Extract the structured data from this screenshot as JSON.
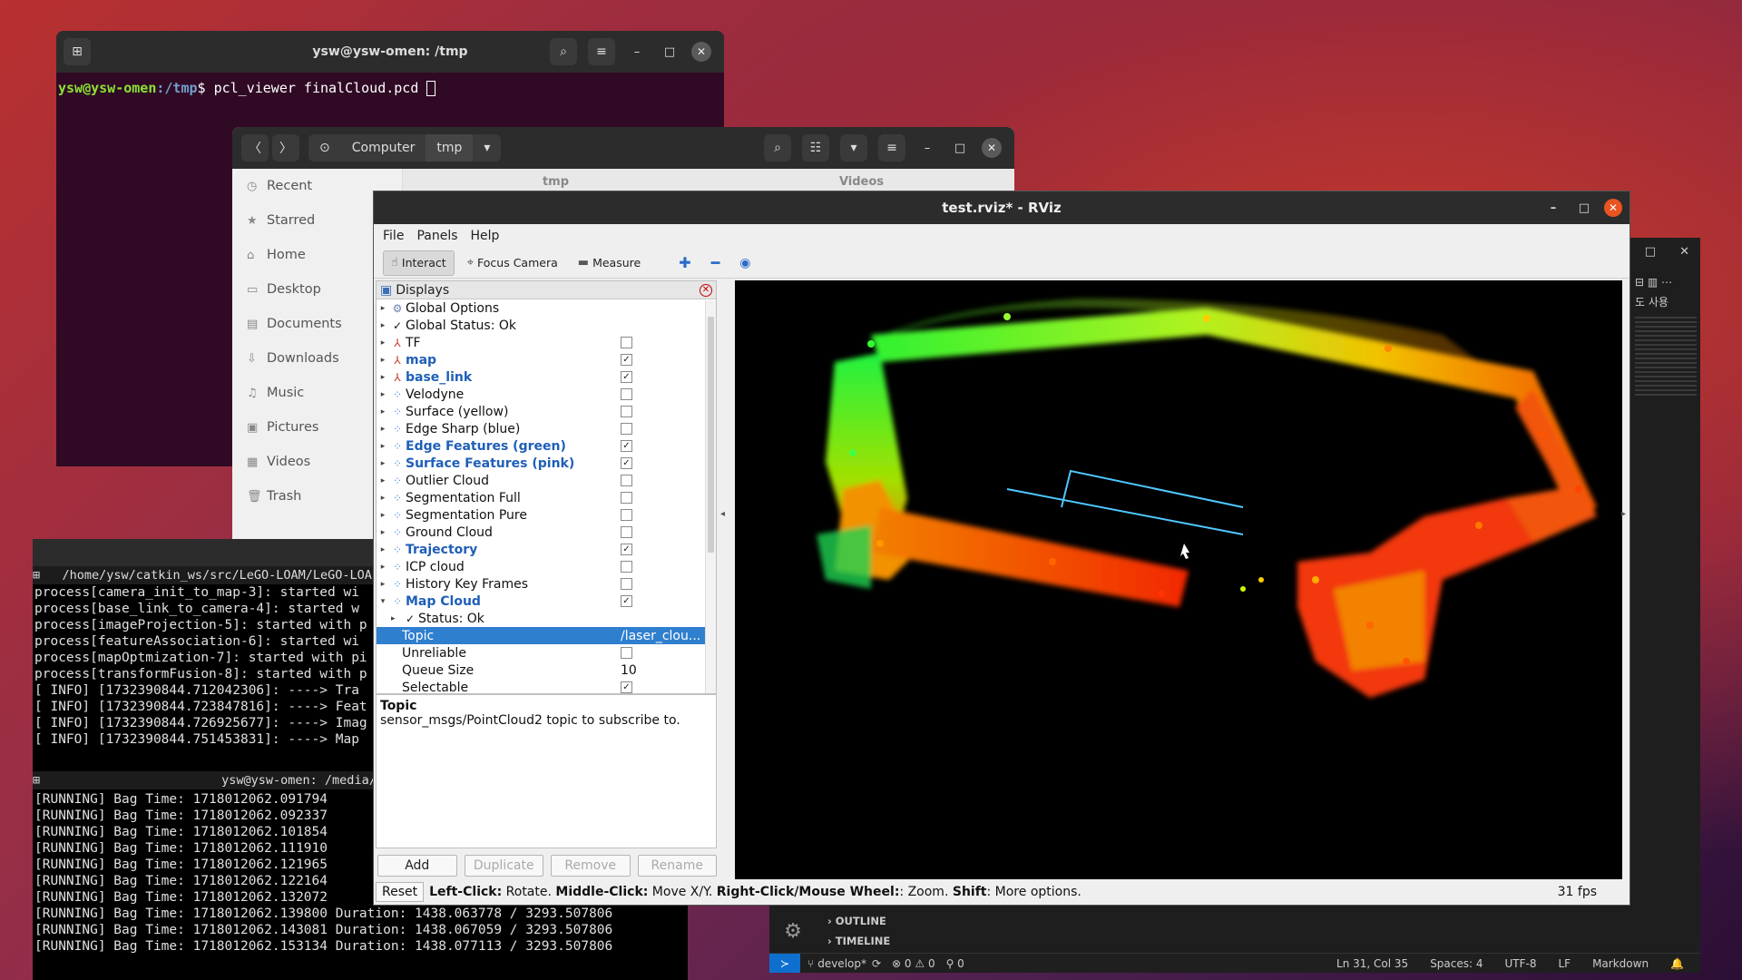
{
  "terminal1": {
    "title": "ysw@ysw-omen: /tmp",
    "user_host": "ysw@ysw-omen",
    "path": ":/tmp",
    "command": "$ pcl_viewer finalCloud.pcd"
  },
  "files": {
    "path_segments": [
      "Computer",
      "tmp"
    ],
    "tabs": [
      "tmp",
      "Videos"
    ],
    "sidebar": [
      "Recent",
      "Starred",
      "Home",
      "Desktop",
      "Documents",
      "Downloads",
      "Music",
      "Pictures",
      "Videos",
      "Trash"
    ]
  },
  "terminal2": {
    "title": "ysw@ysw-omen: /media",
    "subtab": "/home/ysw/catkin_ws/src/LeGO-LOAM/LeGO-LOA",
    "lines": [
      "process[camera_init_to_map-3]: started wi",
      "process[base_link_to_camera-4]: started w",
      "process[imageProjection-5]: started with p",
      "process[featureAssociation-6]: started wi",
      "process[mapOptmization-7]: started with pi",
      "process[transformFusion-8]: started with p",
      "[ INFO] [1732390844.712042306]: ----> Tra",
      "[ INFO] [1732390844.723847816]: ----> Feat",
      "[ INFO] [1732390844.726925677]: ----> Imag",
      "[ INFO] [1732390844.751453831]: ----> Map "
    ]
  },
  "terminal3": {
    "subtab": "ysw@ysw-omen: /media/y",
    "lines": [
      " [RUNNING]  Bag Time: 1718012062.091794",
      " [RUNNING]  Bag Time: 1718012062.092337",
      " [RUNNING]  Bag Time: 1718012062.101854",
      " [RUNNING]  Bag Time: 1718012062.111910",
      " [RUNNING]  Bag Time: 1718012062.121965",
      " [RUNNING]  Bag Time: 1718012062.122164",
      " [RUNNING]  Bag Time: 1718012062.132072",
      " [RUNNING]  Bag Time: 1718012062.139800   Duration: 1438.063778 / 3293.507806",
      " [RUNNING]  Bag Time: 1718012062.143081   Duration: 1438.067059 / 3293.507806",
      " [RUNNING]  Bag Time: 1718012062.153134   Duration: 1438.077113 / 3293.507806"
    ]
  },
  "vscode": {
    "outline": "OUTLINE",
    "timeline": "TIMELINE",
    "branch": "develop*",
    "problems": "⊗ 0 ⚠ 0",
    "ports": "⚲ 0",
    "cursor": "Ln 31, Col 35",
    "spaces": "Spaces: 4",
    "encoding": "UTF-8",
    "eol": "LF",
    "language": "Markdown",
    "side_text": "도 사용"
  },
  "rviz": {
    "title": "test.rviz* - RViz",
    "menu": [
      "File",
      "Panels",
      "Help"
    ],
    "tools": [
      "Interact",
      "Focus Camera",
      "Measure"
    ],
    "displays_title": "Displays",
    "rows": [
      {
        "label": "Global Options",
        "icon": "gear",
        "arrow": "▸",
        "check": null,
        "bold": false
      },
      {
        "label": "Global Status: Ok",
        "icon": "check",
        "arrow": "▸",
        "check": null,
        "bold": false
      },
      {
        "label": "TF",
        "icon": "axes",
        "arrow": "▸",
        "check": false,
        "bold": false
      },
      {
        "label": "map",
        "icon": "axes",
        "arrow": "▸",
        "check": true,
        "bold": true
      },
      {
        "label": "base_link",
        "icon": "axes",
        "arrow": "▸",
        "check": true,
        "bold": true
      },
      {
        "label": "Velodyne",
        "icon": "cloud",
        "arrow": "▸",
        "check": false,
        "bold": false
      },
      {
        "label": "Surface (yellow)",
        "icon": "cloud",
        "arrow": "▸",
        "check": false,
        "bold": false
      },
      {
        "label": "Edge Sharp (blue)",
        "icon": "cloud",
        "arrow": "▸",
        "check": false,
        "bold": false
      },
      {
        "label": "Edge Features (green)",
        "icon": "cloud",
        "arrow": "▸",
        "check": true,
        "bold": true
      },
      {
        "label": "Surface Features (pink)",
        "icon": "cloud",
        "arrow": "▸",
        "check": true,
        "bold": true
      },
      {
        "label": "Outlier Cloud",
        "icon": "cloud",
        "arrow": "▸",
        "check": false,
        "bold": false
      },
      {
        "label": "Segmentation Full",
        "icon": "cloud",
        "arrow": "▸",
        "check": false,
        "bold": false
      },
      {
        "label": "Segmentation Pure",
        "icon": "cloud",
        "arrow": "▸",
        "check": false,
        "bold": false
      },
      {
        "label": "Ground Cloud",
        "icon": "cloud",
        "arrow": "▸",
        "check": false,
        "bold": false
      },
      {
        "label": "Trajectory",
        "icon": "cloud",
        "arrow": "▸",
        "check": true,
        "bold": true
      },
      {
        "label": "ICP cloud",
        "icon": "cloud",
        "arrow": "▸",
        "check": false,
        "bold": false
      },
      {
        "label": "History Key Frames",
        "icon": "cloud",
        "arrow": "▸",
        "check": false,
        "bold": false
      },
      {
        "label": "Map Cloud",
        "icon": "cloud",
        "arrow": "▾",
        "check": true,
        "bold": true
      }
    ],
    "map_cloud_children": [
      {
        "label": "Status: Ok",
        "value": ""
      },
      {
        "label": "Topic",
        "value": "/laser_clou..."
      },
      {
        "label": "Unreliable",
        "value": ""
      },
      {
        "label": "Queue Size",
        "value": "10"
      },
      {
        "label": "Selectable",
        "value": ""
      }
    ],
    "topic_title": "Topic",
    "topic_desc": "sensor_msgs/PointCloud2 topic to subscribe to.",
    "buttons": [
      "Add",
      "Duplicate",
      "Remove",
      "Rename"
    ],
    "reset": "Reset",
    "status": {
      "left_bold": "Left-Click:",
      "left": " Rotate. ",
      "middle_bold": "Middle-Click:",
      "middle": " Move X/Y. ",
      "right_bold": "Right-Click/Mouse Wheel:",
      "right": ": Zoom. ",
      "shift_bold": "Shift",
      "shift": ": More options."
    },
    "fps": "31 fps"
  }
}
